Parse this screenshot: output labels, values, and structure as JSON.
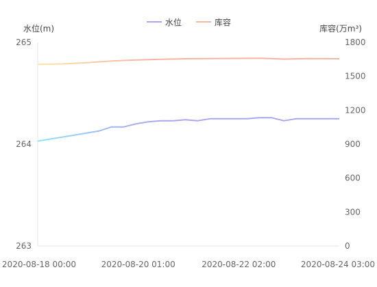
{
  "chart_data": {
    "type": "line",
    "legend": {
      "placement": "top-center",
      "items": [
        {
          "name": "水位",
          "color": "#a9a6f2"
        },
        {
          "name": "库容",
          "color": "#f7b5a1"
        }
      ]
    },
    "y_left": {
      "title": "水位(m)",
      "min": 263,
      "max": 265,
      "ticks": [
        "263",
        "264",
        "265"
      ]
    },
    "y_right": {
      "title": "库容(万m³)",
      "min": 0,
      "max": 1800,
      "ticks": [
        "0",
        "300",
        "600",
        "900",
        "1200",
        "1500",
        "1800"
      ]
    },
    "x_axis": {
      "type": "time",
      "start": "2020-08-18 00:00",
      "end": "2020-08-24 03:00",
      "tick_labels": [
        "2020-08-18 00:00",
        "2020-08-20 01:00",
        "2020-08-22 02:00",
        "2020-08-24 03:00"
      ]
    },
    "grid": false,
    "series": [
      {
        "name": "水位",
        "axis": "left",
        "color_start": "#8fe3f8",
        "color": "#a9a6f2",
        "points": [
          [
            "2020-08-18 00:00",
            264.03
          ],
          [
            "2020-08-18 06:00",
            264.05
          ],
          [
            "2020-08-18 12:00",
            264.07
          ],
          [
            "2020-08-18 18:00",
            264.09
          ],
          [
            "2020-08-19 00:00",
            264.11
          ],
          [
            "2020-08-19 06:00",
            264.13
          ],
          [
            "2020-08-19 12:00",
            264.17
          ],
          [
            "2020-08-19 18:00",
            264.17
          ],
          [
            "2020-08-20 00:00",
            264.2
          ],
          [
            "2020-08-20 06:00",
            264.22
          ],
          [
            "2020-08-20 12:00",
            264.23
          ],
          [
            "2020-08-20 18:00",
            264.23
          ],
          [
            "2020-08-21 00:00",
            264.24
          ],
          [
            "2020-08-21 06:00",
            264.23
          ],
          [
            "2020-08-21 12:00",
            264.25
          ],
          [
            "2020-08-21 18:00",
            264.25
          ],
          [
            "2020-08-22 00:00",
            264.25
          ],
          [
            "2020-08-22 06:00",
            264.25
          ],
          [
            "2020-08-22 12:00",
            264.26
          ],
          [
            "2020-08-22 18:00",
            264.26
          ],
          [
            "2020-08-23 00:00",
            264.23
          ],
          [
            "2020-08-23 06:00",
            264.25
          ],
          [
            "2020-08-23 12:00",
            264.25
          ],
          [
            "2020-08-23 18:00",
            264.25
          ],
          [
            "2020-08-24 03:00",
            264.25
          ]
        ]
      },
      {
        "name": "库容",
        "axis": "right",
        "color_start": "#fce5a8",
        "color": "#f7b5a1",
        "points": [
          [
            "2020-08-18 00:00",
            1605
          ],
          [
            "2020-08-18 12:00",
            1610
          ],
          [
            "2020-08-19 00:00",
            1620
          ],
          [
            "2020-08-19 12:00",
            1635
          ],
          [
            "2020-08-20 00:00",
            1645
          ],
          [
            "2020-08-20 12:00",
            1650
          ],
          [
            "2020-08-21 00:00",
            1655
          ],
          [
            "2020-08-21 12:00",
            1656
          ],
          [
            "2020-08-22 00:00",
            1658
          ],
          [
            "2020-08-22 12:00",
            1660
          ],
          [
            "2020-08-23 00:00",
            1652
          ],
          [
            "2020-08-23 12:00",
            1657
          ],
          [
            "2020-08-24 03:00",
            1655
          ]
        ]
      }
    ]
  }
}
